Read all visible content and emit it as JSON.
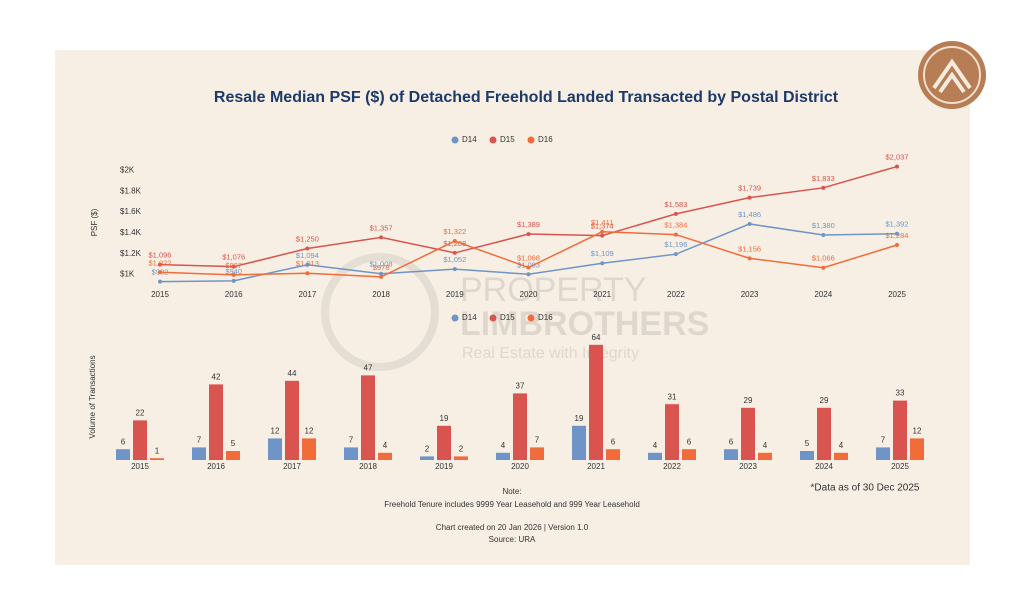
{
  "chart_data": [
    {
      "type": "line",
      "title": "Resale Median PSF ($) of Detached Freehold Landed Transacted by Postal District",
      "y_label": "PSF ($)",
      "categories": [
        "2015",
        "2016",
        "2017",
        "2018",
        "2019",
        "2020",
        "2021",
        "2022",
        "2023",
        "2024",
        "2025"
      ],
      "series": [
        {
          "name": "D14",
          "color": "#6f95c8",
          "values": [
            932,
            940,
            1094,
            1008,
            1052,
            1003,
            1109,
            1196,
            1486,
            1380,
            1392
          ],
          "value_labels": [
            "$932",
            "$940",
            "$1,094",
            "$1,008",
            "$1,052",
            "$1,003",
            "$1,109",
            "$1,196",
            "$1,486",
            "$1,380",
            "$1,392"
          ]
        },
        {
          "name": "D15",
          "color": "#d9534f",
          "values": [
            1096,
            1076,
            1250,
            1357,
            1208,
            1389,
            1374,
            1583,
            1739,
            1833,
            2037
          ],
          "value_labels": [
            "$1,096",
            "$1,076",
            "$1,250",
            "$1,357",
            "$1,208",
            "$1,389",
            "$1,374",
            "$1,583",
            "$1,739",
            "$1,833",
            "$2,037"
          ]
        },
        {
          "name": "D16",
          "color": "#f26b3a",
          "values": [
            1022,
            997,
            1013,
            978,
            1322,
            1068,
            1411,
            1384,
            1156,
            1066,
            1284
          ],
          "value_labels": [
            "$1,022",
            "$997",
            "$1,013",
            "$978",
            "$1,322",
            "$1,068",
            "$1,411",
            "$1,384",
            "$1,156",
            "$1,066",
            "$1,284"
          ]
        }
      ],
      "ylim": [
        900,
        2100
      ],
      "yticks": [
        {
          "value": 1000,
          "label": "$1K"
        },
        {
          "value": 1200,
          "label": "$1.2K"
        },
        {
          "value": 1400,
          "label": "$1.4K"
        },
        {
          "value": 1600,
          "label": "$1.6K"
        },
        {
          "value": 1800,
          "label": "$1.8K"
        },
        {
          "value": 2000,
          "label": "$2K"
        }
      ],
      "grid": false,
      "legend": "top"
    },
    {
      "type": "bar",
      "y_label": "Volume of Transactions",
      "categories": [
        "2015",
        "2016",
        "2017",
        "2018",
        "2019",
        "2020",
        "2021",
        "2022",
        "2023",
        "2024",
        "2025"
      ],
      "series": [
        {
          "name": "D14",
          "color": "#6f95c8",
          "values": [
            6,
            7,
            12,
            7,
            2,
            4,
            19,
            4,
            6,
            5,
            7
          ]
        },
        {
          "name": "D15",
          "color": "#d9534f",
          "values": [
            22,
            42,
            44,
            47,
            19,
            37,
            64,
            31,
            29,
            29,
            33
          ]
        },
        {
          "name": "D16",
          "color": "#f26b3a",
          "values": [
            1,
            5,
            12,
            4,
            2,
            7,
            6,
            6,
            4,
            4,
            12
          ]
        }
      ],
      "ylim": [
        0,
        70
      ],
      "legend": "top"
    }
  ],
  "notes": {
    "data_date": "*Data as of 30 Dec 2025",
    "note_title": "Note:",
    "note_text": "Freehold Tenure includes 9999 Year Leasehold and 999 Year Leasehold",
    "created": "Chart created on 20 Jan 2026 | Version 1.0",
    "source": "Source: URA"
  },
  "watermark": {
    "line1": "PROPERTY",
    "line2": "LIMBROTHERS",
    "line3": "Real Estate with Integrity"
  }
}
